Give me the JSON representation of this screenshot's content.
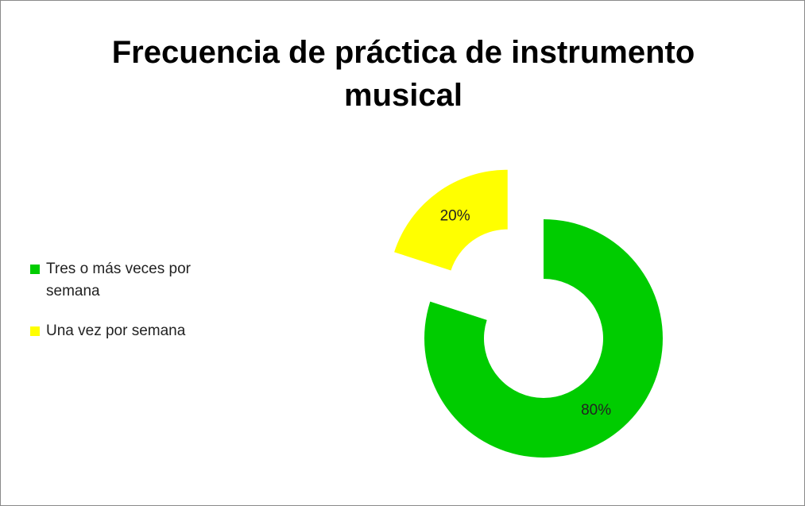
{
  "chart_data": {
    "type": "doughnut",
    "title": "Frecuencia de práctica de instrumento musical",
    "categories": [
      "Tres o más veces por semana",
      "Una vez por semana"
    ],
    "values": [
      80,
      20
    ],
    "value_labels": [
      "80%",
      "20%"
    ],
    "colors": [
      "#00cc00",
      "#ffff00"
    ],
    "legend": "left"
  }
}
